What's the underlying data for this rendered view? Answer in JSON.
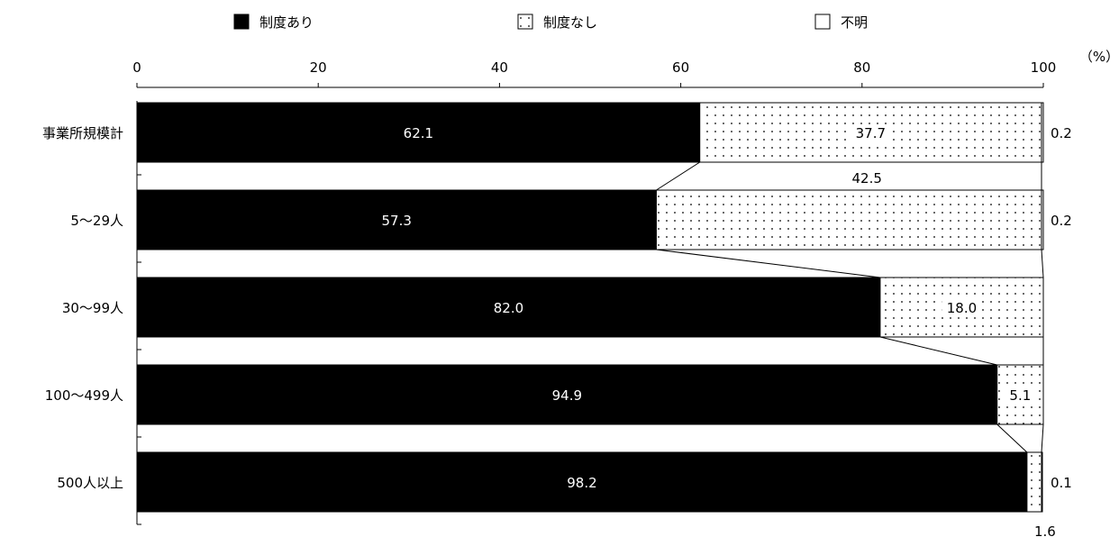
{
  "chart_data": {
    "type": "bar",
    "orientation": "horizontal",
    "stacked": true,
    "unit_label": "（%）",
    "xlim": [
      0,
      100
    ],
    "x_ticks": [
      0,
      20,
      40,
      60,
      80,
      100
    ],
    "categories": [
      "事業所規模計",
      "5～29人",
      "30～99人",
      "100～499人",
      "500人以上"
    ],
    "series": [
      {
        "name": "制度あり",
        "values": [
          62.1,
          57.3,
          82.0,
          94.9,
          98.2
        ]
      },
      {
        "name": "制度なし",
        "values": [
          37.7,
          42.5,
          18.0,
          5.1,
          1.6
        ]
      },
      {
        "name": "不明",
        "values": [
          0.2,
          0.2,
          0.0,
          0.0,
          0.1
        ]
      }
    ],
    "data_labels": {
      "制度あり": [
        "62.1",
        "57.3",
        "82.0",
        "94.9",
        "98.2"
      ],
      "制度なし": [
        "37.7",
        "42.5",
        "18.0",
        "5.1",
        "1.6"
      ],
      "不明": [
        "0.2",
        "0.2",
        "",
        "",
        "0.1"
      ]
    },
    "legend_position": "top",
    "connector_lines": true,
    "colors": {
      "制度あり": "#000000",
      "制度なし": "#ffffff",
      "不明": "#ffffff"
    },
    "patterns": {
      "制度なし": "dotted",
      "不明": "none"
    }
  }
}
